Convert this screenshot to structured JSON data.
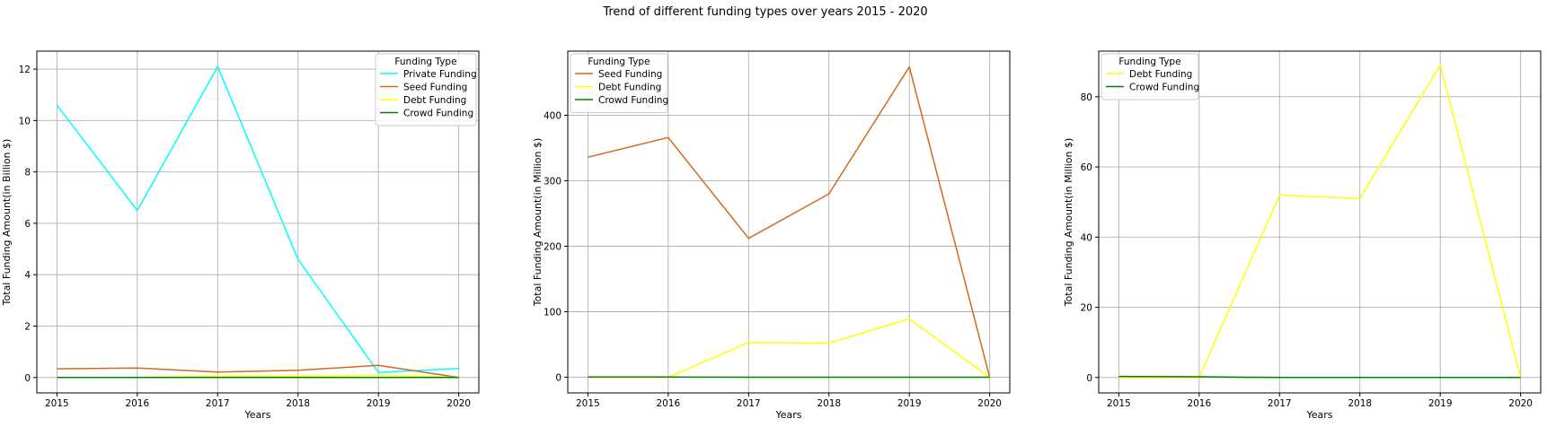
{
  "suptitle": "Trend of different funding types over years 2015 - 2020",
  "colors": {
    "Private Funding": "#00ffff",
    "Seed Funding": "#d2691e",
    "Debt Funding": "#ffff00",
    "Crowd Funding": "#008000"
  },
  "chart_data": [
    {
      "type": "line",
      "x": [
        2015,
        2016,
        2017,
        2018,
        2019,
        2020
      ],
      "xlabel": "Years",
      "ylabel": "Total Funding Amount(in Billion $)",
      "xlim": [
        2014.75,
        2020.25
      ],
      "ylim": [
        -0.6,
        12.7
      ],
      "yticks": [
        0,
        2,
        4,
        6,
        8,
        10,
        12
      ],
      "grid": true,
      "legend_title": "Funding Type",
      "legend_position": "top-right",
      "series": [
        {
          "name": "Private Funding",
          "values": [
            10.6,
            6.5,
            12.1,
            4.6,
            0.2,
            0.35
          ]
        },
        {
          "name": "Seed Funding",
          "values": [
            0.34,
            0.37,
            0.21,
            0.28,
            0.47,
            0.0
          ]
        },
        {
          "name": "Debt Funding",
          "values": [
            0.0,
            0.0,
            0.05,
            0.05,
            0.09,
            0.0
          ]
        },
        {
          "name": "Crowd Funding",
          "values": [
            0.0,
            0.0,
            0.0,
            0.0,
            0.0,
            0.0
          ]
        }
      ]
    },
    {
      "type": "line",
      "x": [
        2015,
        2016,
        2017,
        2018,
        2019,
        2020
      ],
      "xlabel": "Years",
      "ylabel": "Total Funding Amount(in Million $)",
      "xlim": [
        2014.75,
        2020.25
      ],
      "ylim": [
        -24,
        498
      ],
      "yticks": [
        0,
        100,
        200,
        300,
        400
      ],
      "grid": true,
      "legend_title": "Funding Type",
      "legend_position": "top-left",
      "series": [
        {
          "name": "Seed Funding",
          "values": [
            336,
            366,
            212,
            280,
            474,
            0
          ]
        },
        {
          "name": "Debt Funding",
          "values": [
            0,
            0,
            53,
            52,
            89,
            0
          ]
        },
        {
          "name": "Crowd Funding",
          "values": [
            0.3,
            0.2,
            0,
            0,
            0,
            0
          ]
        }
      ]
    },
    {
      "type": "line",
      "x": [
        2015,
        2016,
        2017,
        2018,
        2019,
        2020
      ],
      "xlabel": "Years",
      "ylabel": "Total Funding Amount(in Million $)",
      "xlim": [
        2014.75,
        2020.25
      ],
      "ylim": [
        -4.4,
        93
      ],
      "yticks": [
        0,
        20,
        40,
        60,
        80
      ],
      "grid": true,
      "legend_title": "Funding Type",
      "legend_position": "top-left",
      "series": [
        {
          "name": "Debt Funding",
          "values": [
            0,
            0,
            52,
            51,
            89,
            0
          ]
        },
        {
          "name": "Crowd Funding",
          "values": [
            0.3,
            0.2,
            0,
            0,
            0,
            0
          ]
        }
      ]
    }
  ]
}
